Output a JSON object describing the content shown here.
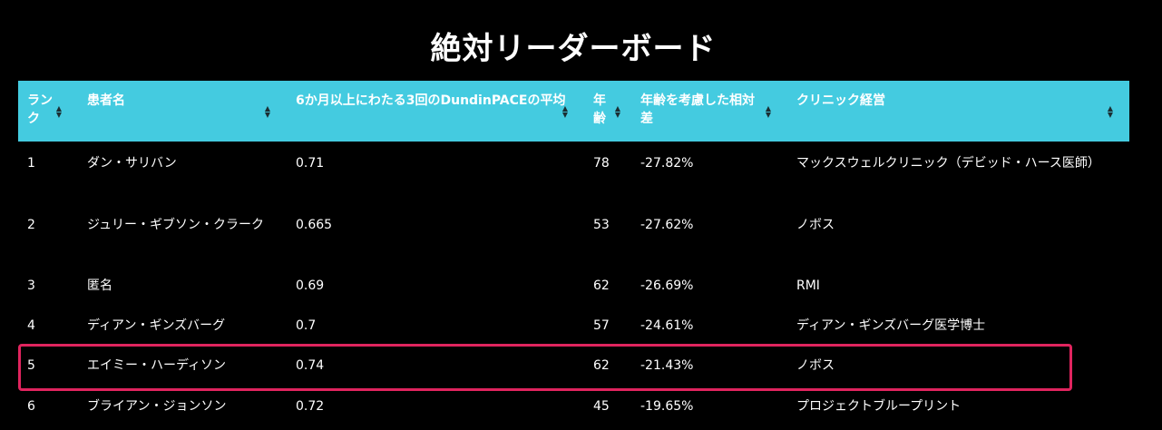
{
  "title": "絶対リーダーボード",
  "highlight_color": "#e0245e",
  "header_color": "#44cbe0",
  "sort_icon": "sort-up-down-icon",
  "columns": [
    "ランク",
    "患者名",
    "6か月以上にわたる3回のDundinPACEの平均",
    "年齢",
    "年齢を考慮した相対差",
    "クリニック経営"
  ],
  "rows": [
    {
      "rank": "1",
      "name": "ダン・サリバン",
      "avg": "0.71",
      "age": "78",
      "diff": "-27.82%",
      "clinic": "マックスウェルクリニック（デビッド・ハース医師）"
    },
    {
      "rank": "2",
      "name": "ジュリー・ギブソン・クラーク",
      "avg": "0.665",
      "age": "53",
      "diff": "-27.62%",
      "clinic": "ノボス"
    },
    {
      "rank": "3",
      "name": "匿名",
      "avg": "0.69",
      "age": "62",
      "diff": "-26.69%",
      "clinic": "RMI"
    },
    {
      "rank": "4",
      "name": "ディアン・ギンズバーグ",
      "avg": "0.7",
      "age": "57",
      "diff": "-24.61%",
      "clinic": "ディアン・ギンズバーグ医学博士"
    },
    {
      "rank": "5",
      "name": "エイミー・ハーディソン",
      "avg": "0.74",
      "age": "62",
      "diff": "-21.43%",
      "clinic": "ノボス"
    },
    {
      "rank": "6",
      "name": "ブライアン・ジョンソン",
      "avg": "0.72",
      "age": "45",
      "diff": "-19.65%",
      "clinic": "プロジェクトブループリント"
    }
  ]
}
